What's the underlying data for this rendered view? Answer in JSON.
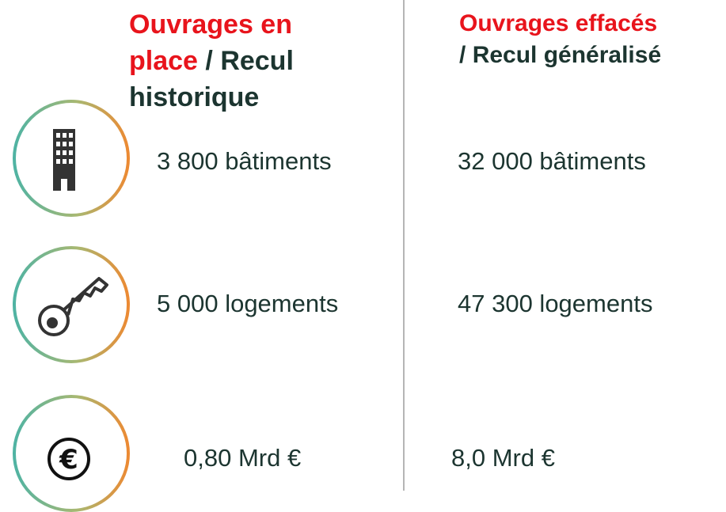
{
  "columns": [
    {
      "title_red": "Ouvrages en place",
      "separator": "/",
      "title_dark": "Recul historique"
    },
    {
      "title_red": "Ouvrages effacés",
      "separator": "/",
      "title_dark": "Recul généralisé"
    }
  ],
  "rows": [
    {
      "values": [
        "3 800 bâtiments",
        "32 000 bâtiments"
      ]
    },
    {
      "values": [
        "5 000 logements",
        "47 300 logements"
      ]
    },
    {
      "values": [
        "0,80 Mrd €",
        "8,0 Mrd €"
      ]
    }
  ]
}
